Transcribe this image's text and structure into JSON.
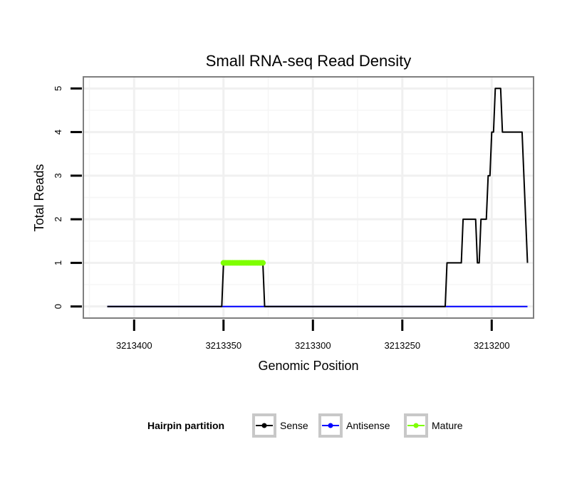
{
  "chart_data": {
    "type": "line",
    "title": "Small RNA-seq Read Density",
    "xlabel": "Genomic Position",
    "ylabel": "Total Reads",
    "x_reversed": true,
    "xlim": [
      3213177,
      3213428
    ],
    "ylim": [
      -0.25,
      5.25
    ],
    "x_ticks": [
      3213400,
      3213350,
      3213300,
      3213250,
      3213200
    ],
    "x_tick_labels": [
      "3213400",
      "3213350",
      "3213300",
      "3213250",
      "3213200"
    ],
    "y_ticks": [
      0,
      1,
      2,
      3,
      4,
      5
    ],
    "y_tick_labels": [
      "0",
      "1",
      "2",
      "3",
      "4",
      "5"
    ],
    "grid": true,
    "legend": {
      "title": "Hairpin partition",
      "position": "bottom",
      "entries": [
        "Sense",
        "Antisense",
        "Mature"
      ]
    },
    "series": [
      {
        "name": "Sense",
        "color": "#000000",
        "x": [
          3213415,
          3213351,
          3213350,
          3213328,
          3213327,
          3213226,
          3213225,
          3213217,
          3213216,
          3213209,
          3213208,
          3213207,
          3213206,
          3213203,
          3213202,
          3213201,
          3213200,
          3213199,
          3213198,
          3213195,
          3213194,
          3213189,
          3213188,
          3213184,
          3213183,
          3213180
        ],
        "y": [
          0,
          0,
          1,
          1,
          0,
          0,
          1,
          1,
          2,
          2,
          1,
          1,
          2,
          2,
          3,
          3,
          4,
          4,
          5,
          5,
          4,
          4,
          4,
          4,
          4,
          1
        ]
      },
      {
        "name": "Antisense",
        "color": "#0000ff",
        "x": [
          3213415,
          3213180
        ],
        "y": [
          0,
          0
        ]
      },
      {
        "name": "Mature",
        "color": "#7fff00",
        "x": [
          3213350,
          3213349,
          3213348,
          3213347,
          3213346,
          3213345,
          3213344,
          3213343,
          3213342,
          3213341,
          3213340,
          3213339,
          3213338,
          3213337,
          3213336,
          3213335,
          3213334,
          3213333,
          3213332,
          3213331,
          3213330,
          3213329,
          3213328
        ],
        "y": [
          1,
          1,
          1,
          1,
          1,
          1,
          1,
          1,
          1,
          1,
          1,
          1,
          1,
          1,
          1,
          1,
          1,
          1,
          1,
          1,
          1,
          1,
          1
        ]
      }
    ]
  }
}
